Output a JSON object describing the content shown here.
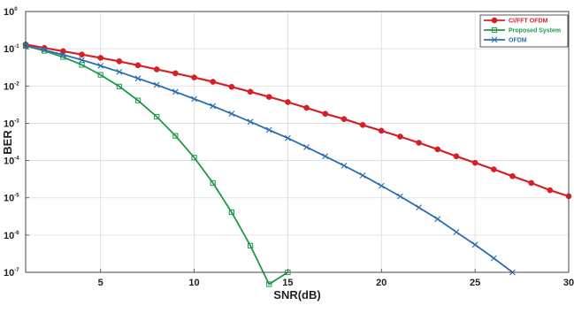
{
  "chart_data": {
    "type": "line",
    "title": "",
    "xlabel": "SNR(dB)",
    "ylabel": "BER",
    "xlim": [
      1,
      30
    ],
    "ylim": [
      1e-07,
      1
    ],
    "y_scale": "log",
    "grid": true,
    "legend_position": "top-right",
    "x_ticks": [
      5,
      10,
      15,
      20,
      25,
      30
    ],
    "x_tick_labels": [
      "5",
      "10",
      "15",
      "20",
      "25",
      "30"
    ],
    "y_ticks": [
      1,
      0.1,
      0.01,
      0.001,
      0.0001,
      1e-05,
      1e-06,
      1e-07
    ],
    "y_tick_labels": [
      {
        "base": "10",
        "exp": "0"
      },
      {
        "base": "10",
        "exp": "-1"
      },
      {
        "base": "10",
        "exp": "-2"
      },
      {
        "base": "10",
        "exp": "-3"
      },
      {
        "base": "10",
        "exp": "-4"
      },
      {
        "base": "10",
        "exp": "-5"
      },
      {
        "base": "10",
        "exp": "-6"
      },
      {
        "base": "10",
        "exp": "-7"
      }
    ],
    "series": [
      {
        "name": "CI/FFT OFDM",
        "color": "#d81f26",
        "marker": "filled-circle",
        "x": [
          1,
          2,
          3,
          4,
          5,
          6,
          7,
          8,
          9,
          10,
          11,
          12,
          13,
          14,
          15,
          16,
          17,
          18,
          19,
          20,
          21,
          22,
          23,
          24,
          25,
          26,
          27,
          28,
          29,
          30
        ],
        "y": [
          0.13,
          0.105,
          0.086,
          0.07,
          0.057,
          0.046,
          0.036,
          0.028,
          0.022,
          0.017,
          0.013,
          0.0095,
          0.007,
          0.0051,
          0.0037,
          0.0026,
          0.0018,
          0.0013,
          0.0009,
          0.00063,
          0.00044,
          0.0003,
          0.0002,
          0.00013,
          8.7e-05,
          5.8e-05,
          3.8e-05,
          2.5e-05,
          1.6e-05,
          1.1e-05
        ]
      },
      {
        "name": "Proposed System",
        "color": "#1f9a48",
        "marker": "open-square",
        "x": [
          1,
          2,
          3,
          4,
          5,
          6,
          7,
          8,
          9,
          10,
          11,
          12,
          13,
          14,
          15
        ],
        "y": [
          0.12,
          0.088,
          0.06,
          0.037,
          0.02,
          0.0097,
          0.0041,
          0.0015,
          0.00046,
          0.00012,
          2.5e-05,
          4.1e-06,
          5.2e-07,
          4.8e-08,
          1e-07
        ]
      },
      {
        "name": "OFDM",
        "color": "#2a6db5",
        "marker": "x-cross",
        "x": [
          1,
          2,
          3,
          4,
          5,
          6,
          7,
          8,
          9,
          10,
          11,
          12,
          13,
          14,
          15,
          16,
          17,
          18,
          19,
          20,
          21,
          22,
          23,
          24,
          25,
          26,
          27
        ],
        "y": [
          0.12,
          0.092,
          0.069,
          0.05,
          0.035,
          0.024,
          0.016,
          0.0107,
          0.007,
          0.0045,
          0.0029,
          0.0018,
          0.0011,
          0.00066,
          0.0004,
          0.00023,
          0.00013,
          7.3e-05,
          4e-05,
          2.1e-05,
          1.1e-05,
          5.5e-06,
          2.7e-06,
          1.2e-06,
          5.5e-07,
          2.4e-07,
          1e-07
        ]
      }
    ]
  }
}
